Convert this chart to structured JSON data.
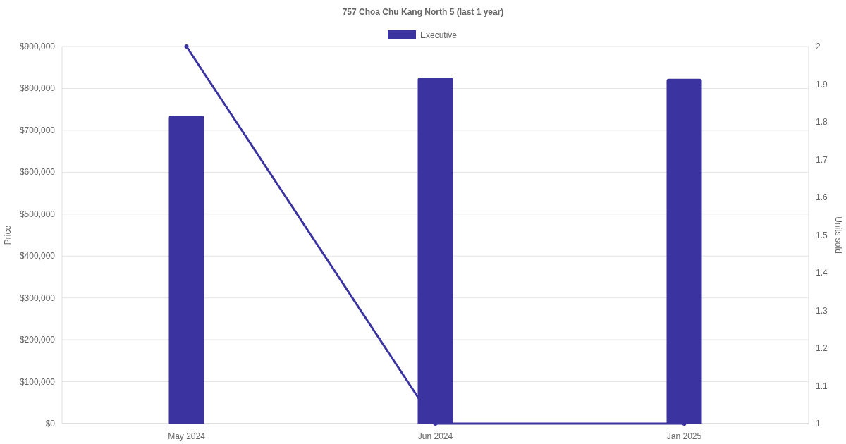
{
  "chart_data": {
    "type": "bar",
    "title": "757 Choa Chu Kang North 5 (last 1 year)",
    "categories": [
      "May 2024",
      "Jun 2024",
      "Jan 2025"
    ],
    "ylabel": "Price",
    "y2label": "Units sold",
    "series": [
      {
        "name": "Executive",
        "color": "#3a33a0",
        "values": [
          735000,
          826000,
          823000
        ]
      },
      {
        "type": "line",
        "axis": "y2",
        "color": "#3a33a0",
        "values": [
          2,
          1,
          1
        ]
      }
    ],
    "ylim": [
      0,
      900000
    ],
    "yticks": [
      {
        "value": 0,
        "label": "$0"
      },
      {
        "value": 100000,
        "label": "$100,000"
      },
      {
        "value": 200000,
        "label": "$200,000"
      },
      {
        "value": 300000,
        "label": "$300,000"
      },
      {
        "value": 400000,
        "label": "$400,000"
      },
      {
        "value": 500000,
        "label": "$500,000"
      },
      {
        "value": 600000,
        "label": "$600,000"
      },
      {
        "value": 700000,
        "label": "$700,000"
      },
      {
        "value": 800000,
        "label": "$800,000"
      },
      {
        "value": 900000,
        "label": "$900,000"
      }
    ],
    "y2lim": [
      1,
      2
    ],
    "y2ticks": [
      1,
      1.1,
      1.2,
      1.3,
      1.4,
      1.5,
      1.6,
      1.7,
      1.8,
      1.9,
      2
    ],
    "grid": "y",
    "legend": "top",
    "marker": "circle",
    "line_style": "solid"
  }
}
